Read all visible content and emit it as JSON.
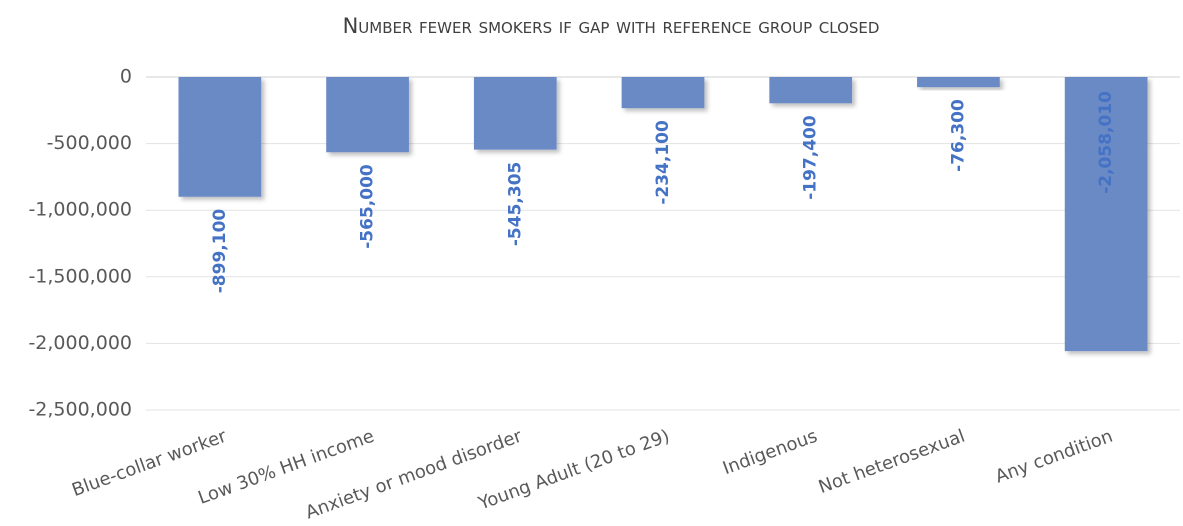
{
  "chart_data": {
    "type": "bar",
    "title": "Number fewer smokers if gap with reference group closed",
    "categories": [
      "Blue-collar worker",
      "Low 30% HH income",
      "Anxiety or mood disorder",
      "Young Adult (20 to 29)",
      "Indigenous",
      "Not heterosexual",
      "Any condition"
    ],
    "values": [
      -899100,
      -565000,
      -545305,
      -234100,
      -197400,
      -76300,
      -2058010
    ],
    "value_labels": [
      "-899,100",
      "-565,000",
      "-545,305",
      "-234,100",
      "-197,400",
      "-76,300",
      "-2,058,010"
    ],
    "color": "#6a8ac6",
    "ylim": [
      -2500000,
      0
    ],
    "yticks": [
      {
        "value": 0,
        "label": "0"
      },
      {
        "value": -500000,
        "label": "-500,000"
      },
      {
        "value": -1000000,
        "label": "-1,000,000"
      },
      {
        "value": -1500000,
        "label": "-1,500,000"
      },
      {
        "value": -2000000,
        "label": "-2,000,000"
      },
      {
        "value": -2500000,
        "label": "-2,500,000"
      }
    ],
    "grid": true
  }
}
